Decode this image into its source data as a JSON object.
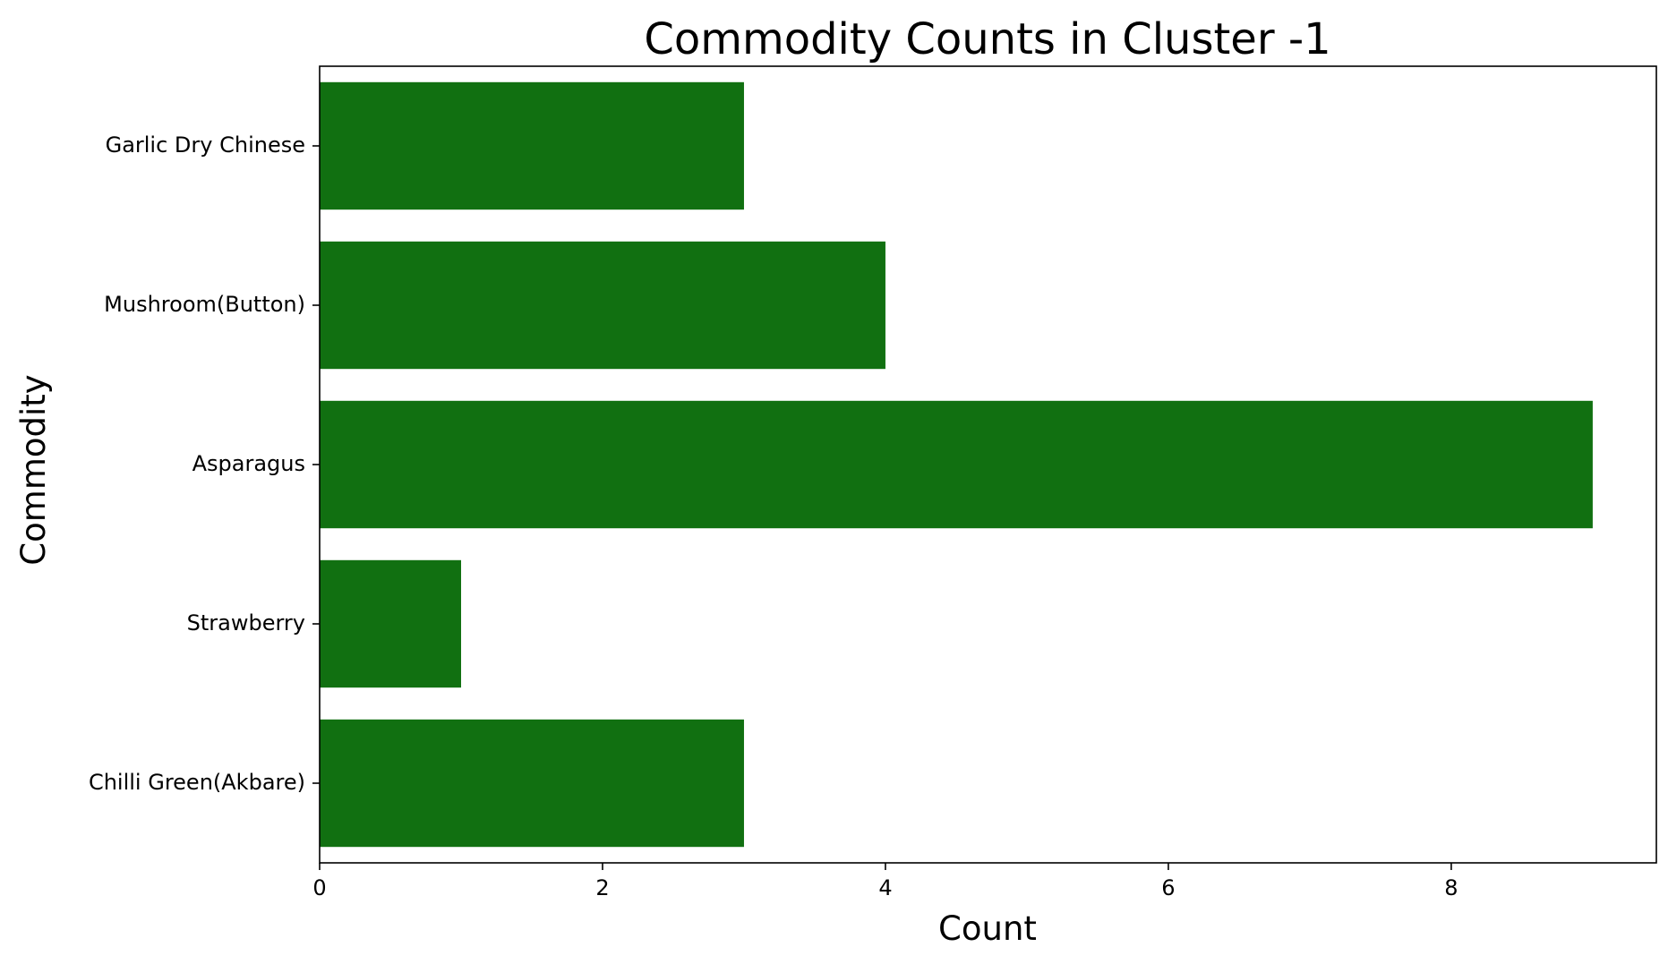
{
  "chart_data": {
    "type": "bar",
    "orientation": "horizontal",
    "title": "Commodity Counts in Cluster -1",
    "xlabel": "Count",
    "ylabel": "Commodity",
    "categories": [
      "Garlic Dry Chinese",
      "Mushroom(Button)",
      "Asparagus",
      "Strawberry",
      "Chilli Green(Akbare)"
    ],
    "values": [
      3,
      4,
      9,
      1,
      3
    ],
    "xlim": [
      0,
      9.45
    ],
    "xticks": [
      0,
      2,
      4,
      6,
      8
    ],
    "xtick_labels": [
      "0",
      "2",
      "4",
      "6",
      "8"
    ],
    "grid": false,
    "legend": false,
    "bar_color": "#117011"
  }
}
